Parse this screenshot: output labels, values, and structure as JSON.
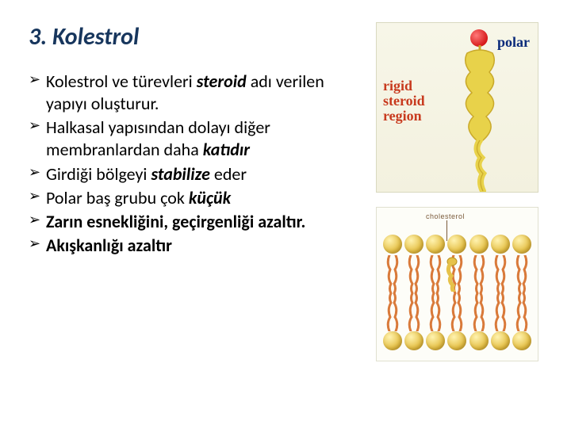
{
  "title": "3. Kolestrol",
  "bullets": [
    {
      "pre": "Kolestrol ve türevleri ",
      "em": "steroid",
      "post": " adı verilen yapıyı oluşturur."
    },
    {
      "pre": "Halkasal yapısından dolayı diğer membranlardan daha ",
      "em": "katıdır",
      "post": ""
    },
    {
      "pre": "Girdiği bölgeyi ",
      "em": "stabilize",
      "post": " eder"
    },
    {
      "pre": "Polar baş grubu çok ",
      "em": "küçük",
      "post": ""
    },
    {
      "full_em": "Zarın esnekliğini, geçirgenliği azaltır."
    },
    {
      "full_em": "Akışkanlığı azaltır"
    }
  ],
  "fig1": {
    "polar_label": "polar",
    "rigid_label_l1": "rigid",
    "rigid_label_l2": "steroid",
    "rigid_label_l3": "region",
    "steroid_fill": "#e8d24a",
    "steroid_stroke": "#c9a92a",
    "polar_color": "#d61a1a"
  },
  "fig2": {
    "label": "cholesterol",
    "head_color": "#e6c24a",
    "tail_color": "#d97a3a",
    "chol_color": "#e6c24a",
    "heads_per_row": 7
  }
}
